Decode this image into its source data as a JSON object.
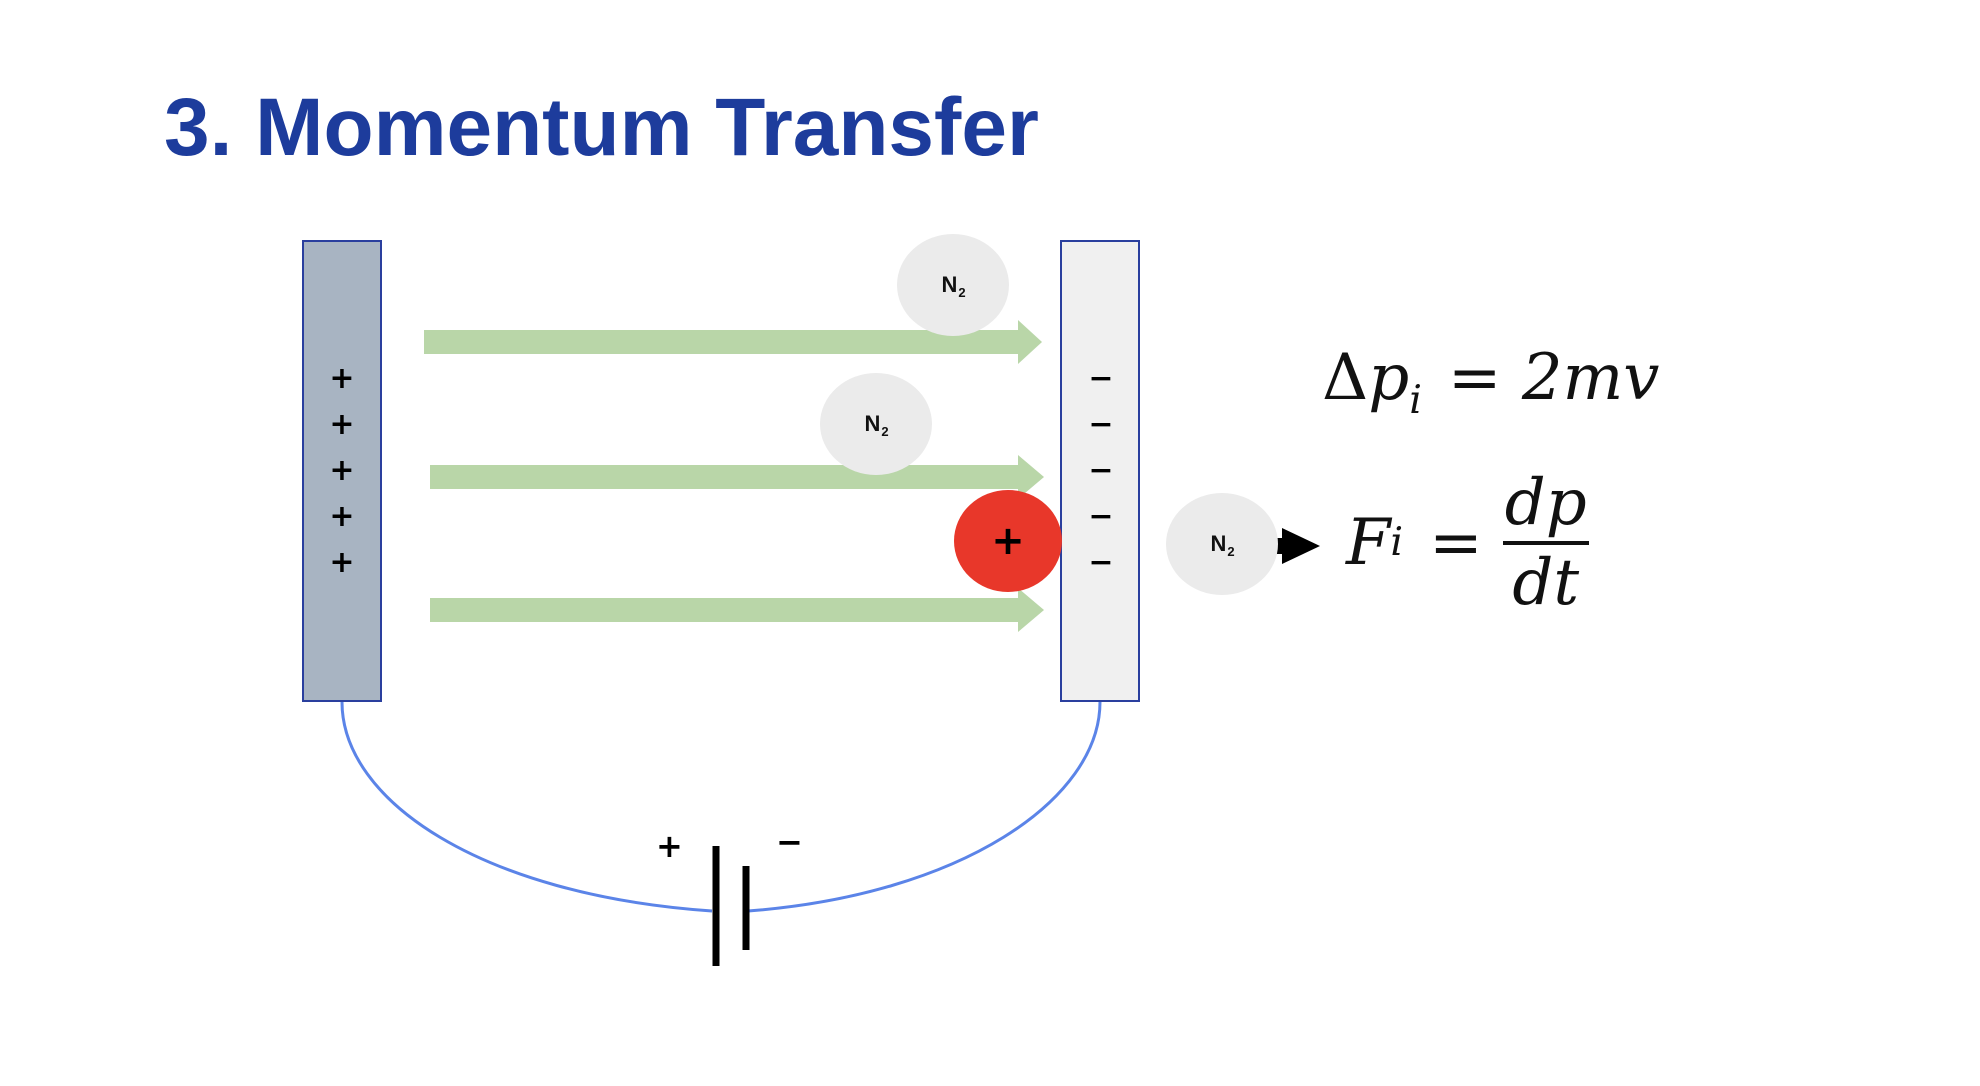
{
  "slide": {
    "title": "3. Momentum Transfer"
  },
  "diagram": {
    "positive_plate": {
      "signs": [
        "+",
        "+",
        "+",
        "+",
        "+"
      ]
    },
    "negative_plate": {
      "signs": [
        "−",
        "−",
        "−",
        "−",
        "−"
      ]
    },
    "molecule": {
      "label": "N",
      "subscript": "2"
    },
    "ion": {
      "sign": "+"
    },
    "battery": {
      "positive": "+",
      "negative": "−"
    },
    "colors": {
      "title": "#1d3c9c",
      "field_arrow": "#b9d6a8",
      "ion": "#e8372a",
      "wire": "#5b84e8",
      "positive_plate": "#a8b4c2",
      "negative_plate": "#f0f0f0",
      "molecule": "#ebebeb"
    }
  },
  "equations": {
    "momentum": {
      "delta": "Δ",
      "var": "p",
      "sub": "i",
      "eq": "=",
      "rhs": "2mv"
    },
    "force": {
      "var": "F",
      "sub": "i",
      "eq": "=",
      "numerator": "dp",
      "denominator": "dt"
    }
  }
}
